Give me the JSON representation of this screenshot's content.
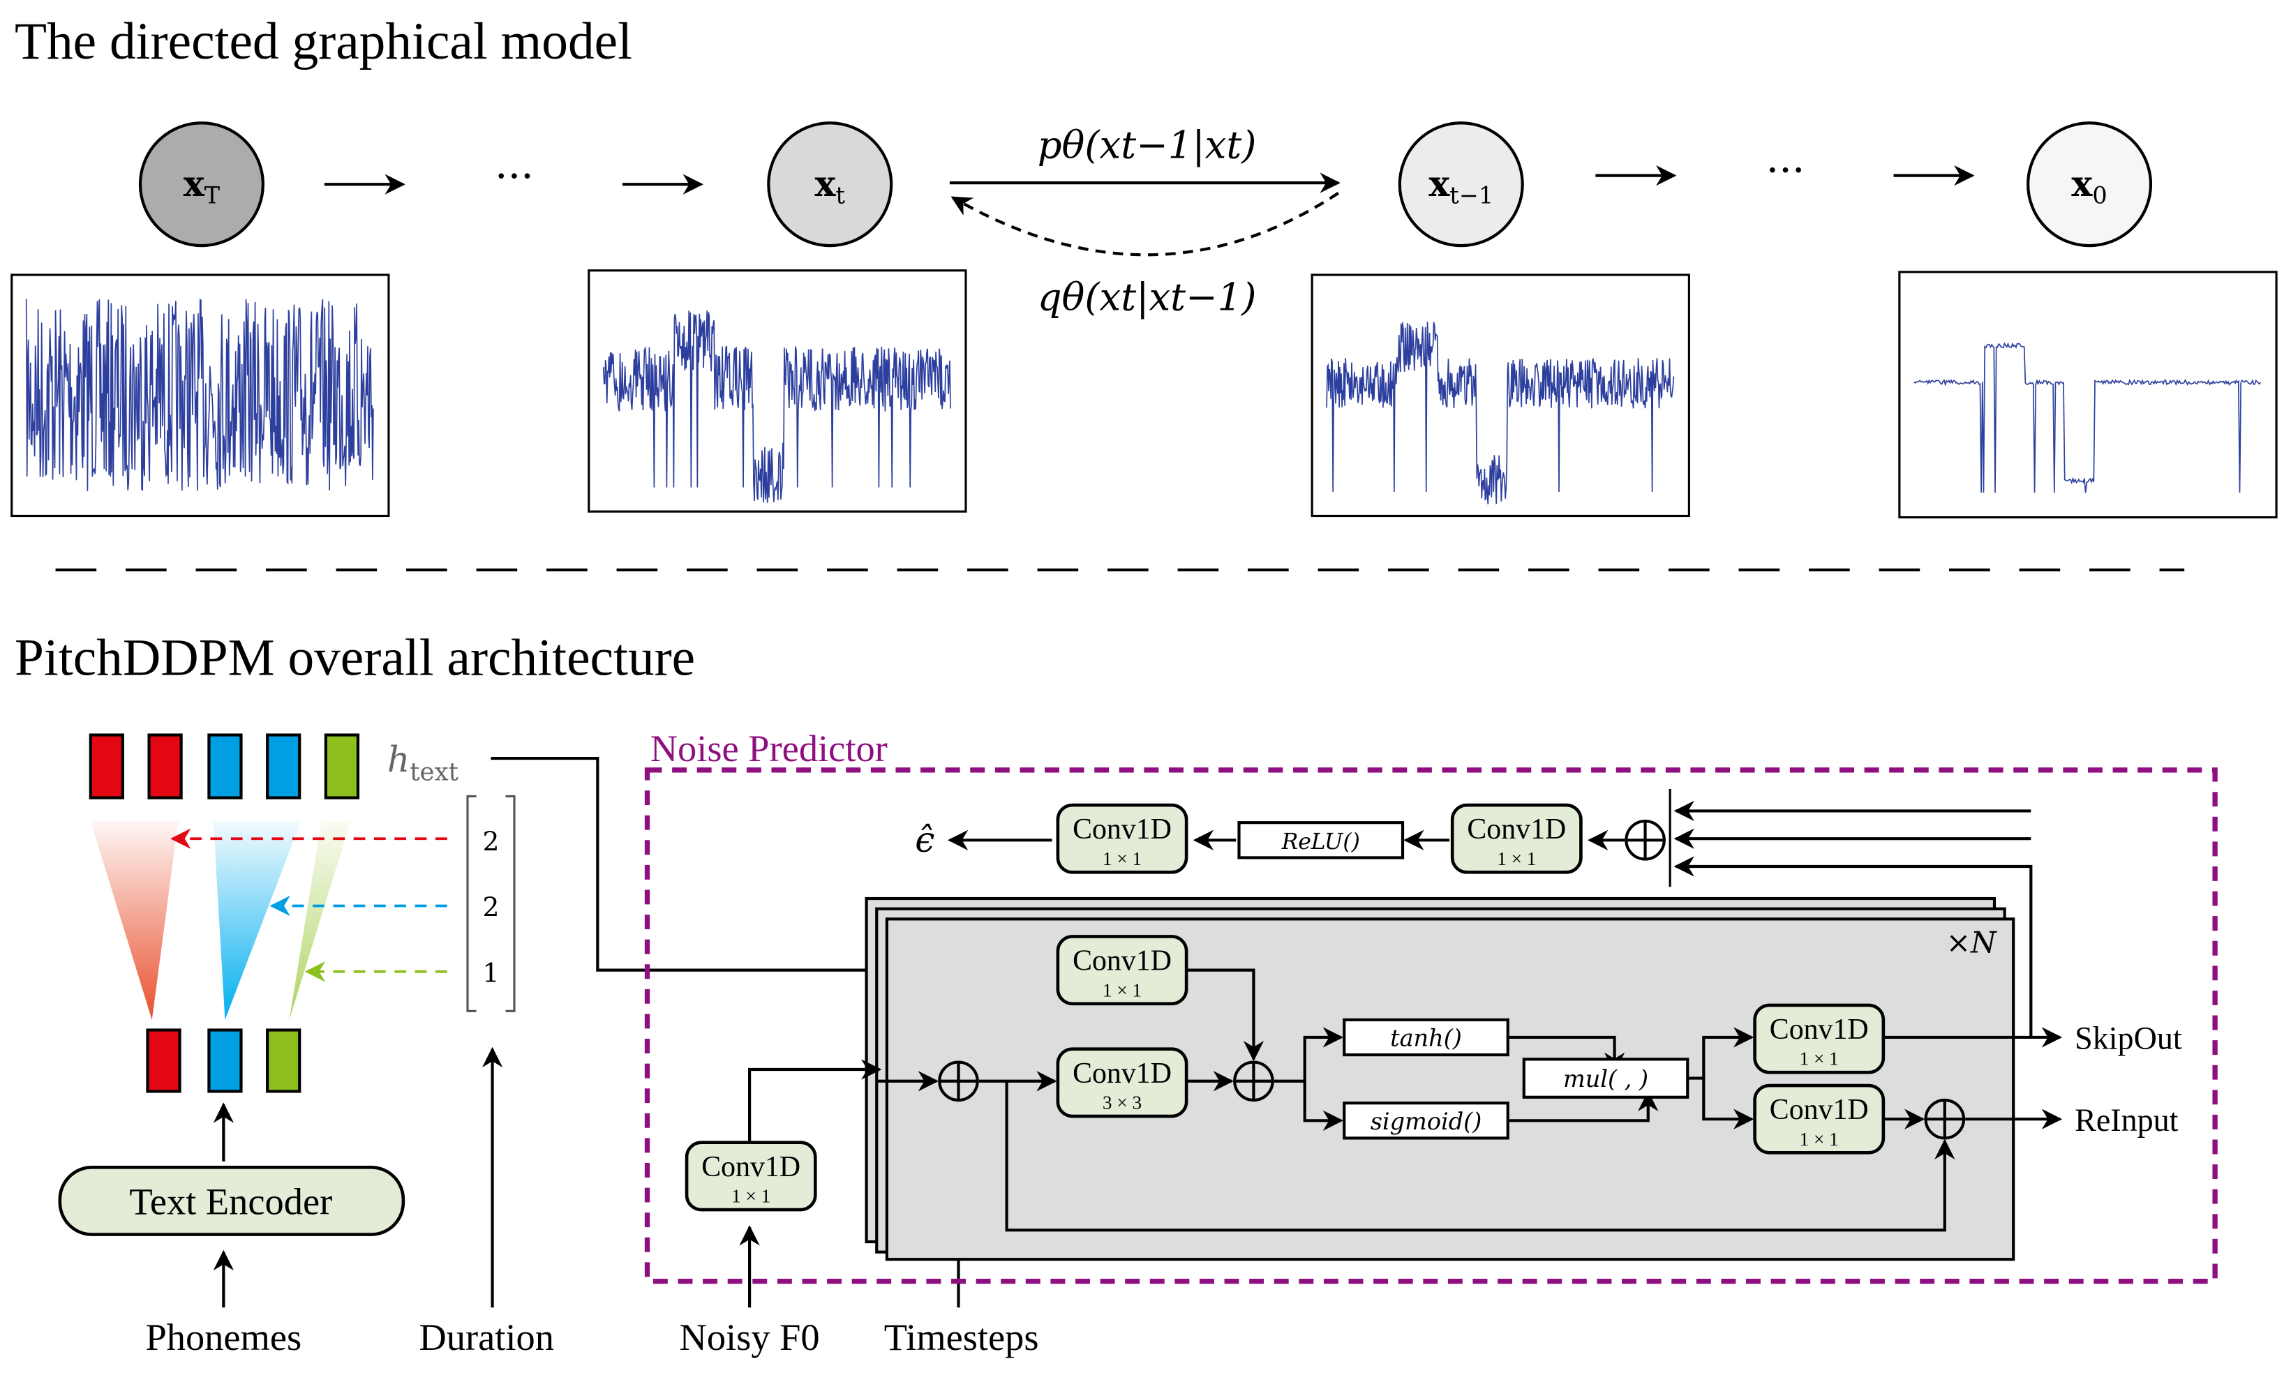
{
  "top": {
    "title": "The directed graphical model",
    "nodes": [
      {
        "label": "x",
        "sub": "T",
        "fill": "#acacac"
      },
      {
        "label": "x",
        "sub": "t",
        "fill": "#d9d9d9"
      },
      {
        "label": "x",
        "sub": "t−1",
        "fill": "#ececec"
      },
      {
        "label": "x",
        "sub": "0",
        "fill": "#f5f6f5"
      }
    ],
    "ellipsis": "···",
    "reverse_label": "pθ(xt−1|xt)",
    "forward_label": "qθ(xt|xt−1)"
  },
  "arch": {
    "title": "PitchDDPM overall architecture",
    "colors": {
      "red": "#e30613",
      "blue": "#009fe3",
      "green": "#8dc01f",
      "purple": "#8e0f80",
      "conv": "#e2ecd7",
      "block": "#dcdedd"
    },
    "h_text": "h",
    "h_text_sub": "text",
    "durations": [
      "2",
      "2",
      "1"
    ],
    "text_encoder": "Text Encoder",
    "inputs": {
      "phonemes": "Phonemes",
      "duration": "Duration",
      "noisy_f0": "Noisy F0",
      "timesteps": "Timesteps"
    },
    "noise_predictor": "Noise Predictor",
    "conv_label": "Conv1D",
    "k1": "1 × 1",
    "k3": "3 × 3",
    "relu": "ReLU()",
    "tanh": "tanh()",
    "sigmoid": "sigmoid()",
    "mul": "mul( , )",
    "epsilon": "ϵ̂",
    "repeat": "×N",
    "skip_out": "SkipOut",
    "re_input": "ReInput"
  }
}
